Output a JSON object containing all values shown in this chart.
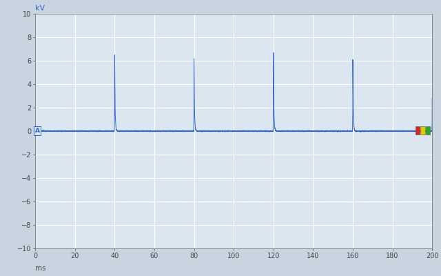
{
  "xlabel": "ms",
  "ylabel": "kV",
  "xlim": [
    0,
    200
  ],
  "ylim": [
    -10,
    10
  ],
  "xticks": [
    0,
    20,
    40,
    60,
    80,
    100,
    120,
    140,
    160,
    180,
    200
  ],
  "yticks": [
    -10,
    -8,
    -6,
    -4,
    -2,
    0,
    2,
    4,
    6,
    8,
    10
  ],
  "line_color": "#3366cc",
  "bg_color": "#dce6f0",
  "plot_bg_color": "#dce6f0",
  "outer_bg": "#c8d4e0",
  "grid_color": "#ffffff",
  "spike_times": [
    40,
    80,
    120,
    160,
    200
  ],
  "spike_heights": [
    6.5,
    6.2,
    6.7,
    6.1,
    2.8
  ],
  "spike_neg": [
    -0.65,
    -0.62,
    -0.65,
    -0.65,
    -0.65
  ],
  "label_A_color": "#3366cc",
  "indicator_colors": [
    "#dd2222",
    "#ddcc00",
    "#22aa22"
  ],
  "baseline_noise_amp": 0.02
}
